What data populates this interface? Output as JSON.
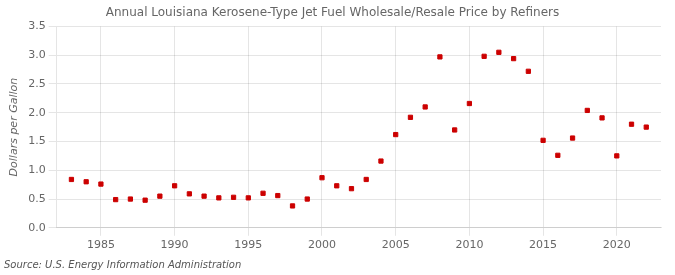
{
  "chart_data": {
    "type": "scatter",
    "title": "Annual Louisiana Kerosene-Type Jet Fuel Wholesale/Resale Price by Refiners",
    "ylabel": "Dollars per Gallon",
    "annotation": "Source: U.S. Energy Information Administration",
    "x": [
      1983,
      1984,
      1985,
      1986,
      1987,
      1988,
      1989,
      1990,
      1991,
      1992,
      1993,
      1994,
      1995,
      1996,
      1997,
      1998,
      1999,
      2000,
      2001,
      2002,
      2003,
      2004,
      2005,
      2006,
      2007,
      2008,
      2009,
      2010,
      2011,
      2012,
      2013,
      2014,
      2015,
      2016,
      2017,
      2018,
      2019,
      2020,
      2021,
      2022
    ],
    "values": [
      0.84,
      0.8,
      0.76,
      0.49,
      0.5,
      0.48,
      0.55,
      0.73,
      0.59,
      0.55,
      0.52,
      0.53,
      0.52,
      0.6,
      0.56,
      0.38,
      0.5,
      0.87,
      0.73,
      0.68,
      0.84,
      1.16,
      1.62,
      1.92,
      2.1,
      2.97,
      1.7,
      2.16,
      2.98,
      3.05,
      2.94,
      2.72,
      1.52,
      1.26,
      1.56,
      2.04,
      1.91,
      1.25,
      1.8,
      1.75
    ],
    "color": "#cc0000",
    "marker": "square",
    "xlim": [
      1982,
      2023
    ],
    "xticks": [
      1985,
      1990,
      1995,
      2000,
      2005,
      2010,
      2015,
      2020
    ],
    "ylim": [
      0.0,
      3.5
    ],
    "yticks": [
      {
        "value": 0.0,
        "label": "0.0"
      },
      0.5,
      {
        "value": 1.0,
        "label": "1.0"
      },
      1.5,
      {
        "value": 2.0,
        "label": "2.0"
      },
      2.5,
      {
        "value": 3.0,
        "label": "3.0"
      },
      3.5
    ],
    "grid": true
  }
}
